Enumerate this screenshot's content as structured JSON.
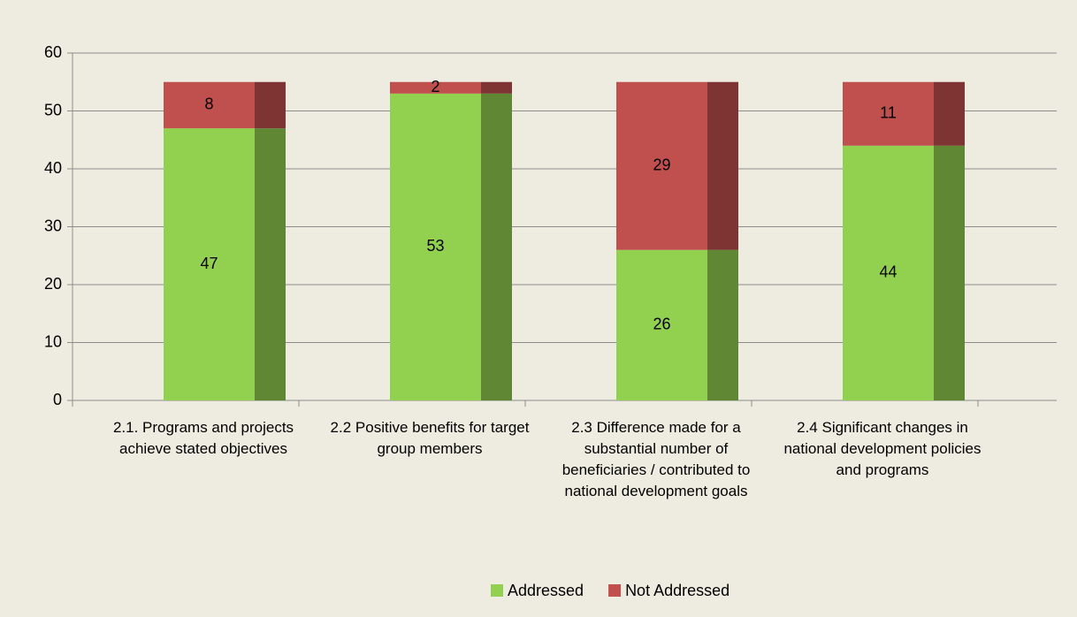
{
  "chart_data": {
    "type": "stacked_bar",
    "categories": [
      "2.1. Programs and projects achieve stated objectives",
      "2.2 Positive benefits for target group members",
      "2.3 Difference made for a substantial number of beneficiaries / contributed to national development goals",
      "2.4 Significant changes in national development policies and programs"
    ],
    "series": [
      {
        "name": "Addressed",
        "color": "#92d050",
        "values": [
          47,
          53,
          26,
          44
        ]
      },
      {
        "name": "Not Addressed",
        "color": "#c0504d",
        "values": [
          8,
          2,
          29,
          11
        ]
      }
    ],
    "ylim": [
      0,
      60
    ],
    "yticks": [
      0,
      10,
      20,
      30,
      40,
      50,
      60
    ],
    "grid": true,
    "legend": "bottom"
  }
}
